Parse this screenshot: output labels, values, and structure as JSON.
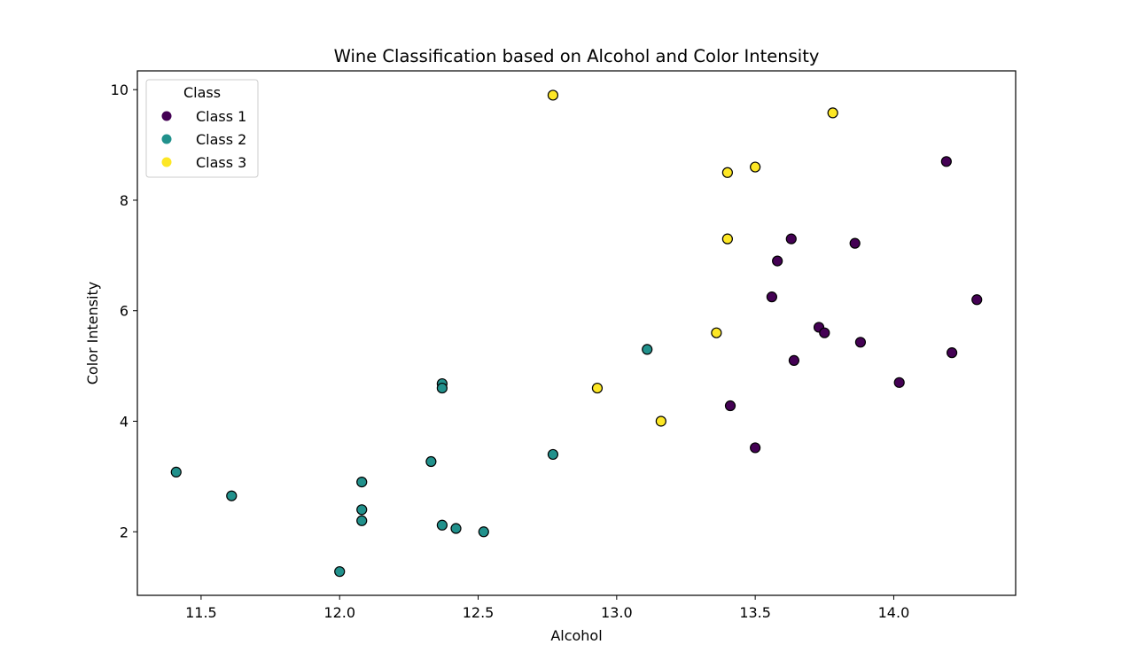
{
  "chart_data": {
    "type": "scatter",
    "title": "Wine Classification based on Alcohol and Color Intensity",
    "xlabel": "Alcohol",
    "ylabel": "Color Intensity",
    "xlim": [
      11.27,
      14.44
    ],
    "ylim": [
      0.85,
      10.34
    ],
    "xticks": [
      11.5,
      12.0,
      12.5,
      13.0,
      13.5,
      14.0
    ],
    "xtick_labels": [
      "11.5",
      "12.0",
      "12.5",
      "13.0",
      "13.5",
      "14.0"
    ],
    "yticks": [
      2,
      4,
      6,
      8,
      10
    ],
    "ytick_labels": [
      "2",
      "4",
      "6",
      "8",
      "10"
    ],
    "grid": false,
    "legend": {
      "title": "Class",
      "placement": "top-left"
    },
    "series": [
      {
        "name": "Class 1",
        "color": "#440154",
        "points": [
          {
            "x": 14.19,
            "y": 8.7
          },
          {
            "x": 13.63,
            "y": 7.3
          },
          {
            "x": 13.86,
            "y": 7.22
          },
          {
            "x": 13.58,
            "y": 6.9
          },
          {
            "x": 13.56,
            "y": 6.25
          },
          {
            "x": 14.3,
            "y": 6.2
          },
          {
            "x": 13.73,
            "y": 5.7
          },
          {
            "x": 13.75,
            "y": 5.6
          },
          {
            "x": 13.88,
            "y": 5.43
          },
          {
            "x": 14.21,
            "y": 5.24
          },
          {
            "x": 13.64,
            "y": 5.1
          },
          {
            "x": 14.02,
            "y": 4.7
          },
          {
            "x": 13.41,
            "y": 4.28
          },
          {
            "x": 13.5,
            "y": 3.52
          }
        ]
      },
      {
        "name": "Class 2",
        "color": "#21918c",
        "points": [
          {
            "x": 13.11,
            "y": 5.3
          },
          {
            "x": 12.37,
            "y": 4.68
          },
          {
            "x": 12.37,
            "y": 4.6
          },
          {
            "x": 12.77,
            "y": 3.4
          },
          {
            "x": 12.33,
            "y": 3.27
          },
          {
            "x": 11.41,
            "y": 3.08
          },
          {
            "x": 12.08,
            "y": 2.9
          },
          {
            "x": 11.61,
            "y": 2.65
          },
          {
            "x": 12.08,
            "y": 2.4
          },
          {
            "x": 12.08,
            "y": 2.2
          },
          {
            "x": 12.37,
            "y": 2.12
          },
          {
            "x": 12.42,
            "y": 2.06
          },
          {
            "x": 12.52,
            "y": 2.0
          },
          {
            "x": 12.0,
            "y": 1.28
          }
        ]
      },
      {
        "name": "Class 3",
        "color": "#fde725",
        "points": [
          {
            "x": 12.77,
            "y": 9.9
          },
          {
            "x": 13.78,
            "y": 9.58
          },
          {
            "x": 13.5,
            "y": 8.6
          },
          {
            "x": 13.4,
            "y": 8.5
          },
          {
            "x": 13.4,
            "y": 7.3
          },
          {
            "x": 13.36,
            "y": 5.6
          },
          {
            "x": 12.93,
            "y": 4.6
          },
          {
            "x": 13.16,
            "y": 4.0
          }
        ]
      }
    ]
  }
}
